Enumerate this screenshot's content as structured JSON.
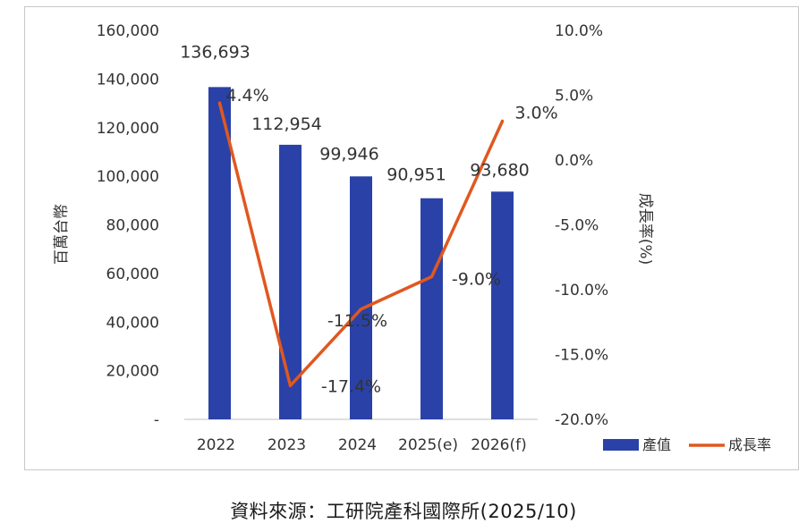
{
  "chart_data": {
    "type": "bar+line",
    "categories": [
      "2022",
      "2023",
      "2024",
      "2025(e)",
      "2026(f)"
    ],
    "series": [
      {
        "name": "產值",
        "type": "bar",
        "axis": "left",
        "color": "#2a42a7",
        "values": [
          136693,
          112954,
          99946,
          90951,
          93680
        ],
        "labels": [
          "136,693",
          "112,954",
          "99,946",
          "90,951",
          "93,680"
        ]
      },
      {
        "name": "成長率",
        "type": "line",
        "axis": "right",
        "color": "#e0581f",
        "values": [
          4.4,
          -17.4,
          -11.5,
          -9.0,
          3.0
        ],
        "labels": [
          "4.4%",
          "-17.4%",
          "-11.5%",
          "-9.0%",
          "3.0%"
        ]
      }
    ],
    "ylabel_left": "百萬台幣",
    "ylabel_right": "成長率(%)",
    "ylim_left": [
      0,
      160000
    ],
    "ylim_right": [
      -20,
      10
    ],
    "left_ticks": [
      "-",
      "20,000",
      "40,000",
      "60,000",
      "80,000",
      "100,000",
      "120,000",
      "140,000",
      "160,000"
    ],
    "right_ticks": [
      "-20.0%",
      "-15.0%",
      "-10.0%",
      "-5.0%",
      "0.0%",
      "5.0%",
      "10.0%"
    ],
    "legend": [
      {
        "label": "產值",
        "marker": "bar"
      },
      {
        "label": "成長率",
        "marker": "line"
      }
    ],
    "legend_position": "bottom-right",
    "grid": false
  },
  "source_text": "資料來源：工研院產科國際所(2025/10)"
}
